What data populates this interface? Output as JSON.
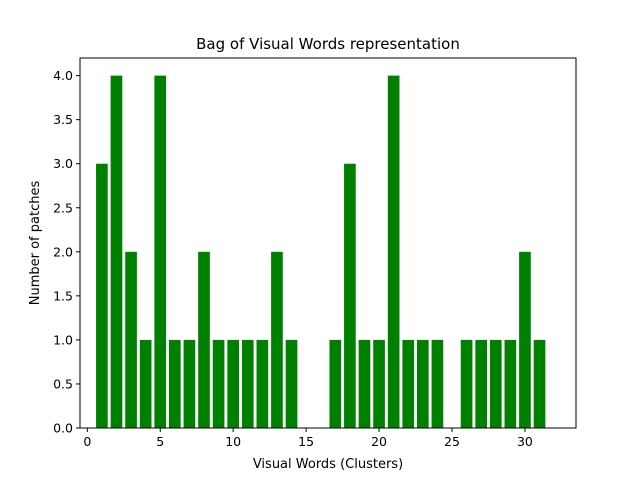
{
  "chart_data": {
    "type": "bar",
    "title": "Bag of Visual Words representation",
    "xlabel": "Visual Words (Clusters)",
    "ylabel": "Number of patches",
    "x": [
      1,
      2,
      3,
      4,
      5,
      6,
      7,
      8,
      9,
      10,
      11,
      12,
      13,
      14,
      15,
      16,
      17,
      18,
      19,
      20,
      21,
      22,
      23,
      24,
      25,
      26,
      27,
      28,
      29,
      30,
      31
    ],
    "values": [
      3,
      4,
      2,
      1,
      4,
      1,
      1,
      2,
      1,
      1,
      1,
      1,
      2,
      1,
      0,
      0,
      1,
      3,
      1,
      1,
      4,
      1,
      1,
      1,
      0,
      1,
      1,
      1,
      1,
      2,
      1
    ],
    "bar_color": "#008000",
    "xlim": [
      -0.5,
      33.5
    ],
    "ylim": [
      0,
      4.2
    ],
    "xticks": [
      0,
      5,
      10,
      15,
      20,
      25,
      30
    ],
    "xtick_labels": [
      "0",
      "5",
      "10",
      "15",
      "20",
      "25",
      "30"
    ],
    "yticks": [
      0,
      0.5,
      1.0,
      1.5,
      2.0,
      2.5,
      3.0,
      3.5,
      4.0
    ],
    "ytick_labels": [
      "0.0",
      "0.5",
      "1.0",
      "1.5",
      "2.0",
      "2.5",
      "3.0",
      "3.5",
      "4.0"
    ],
    "grid": false,
    "legend": false
  }
}
